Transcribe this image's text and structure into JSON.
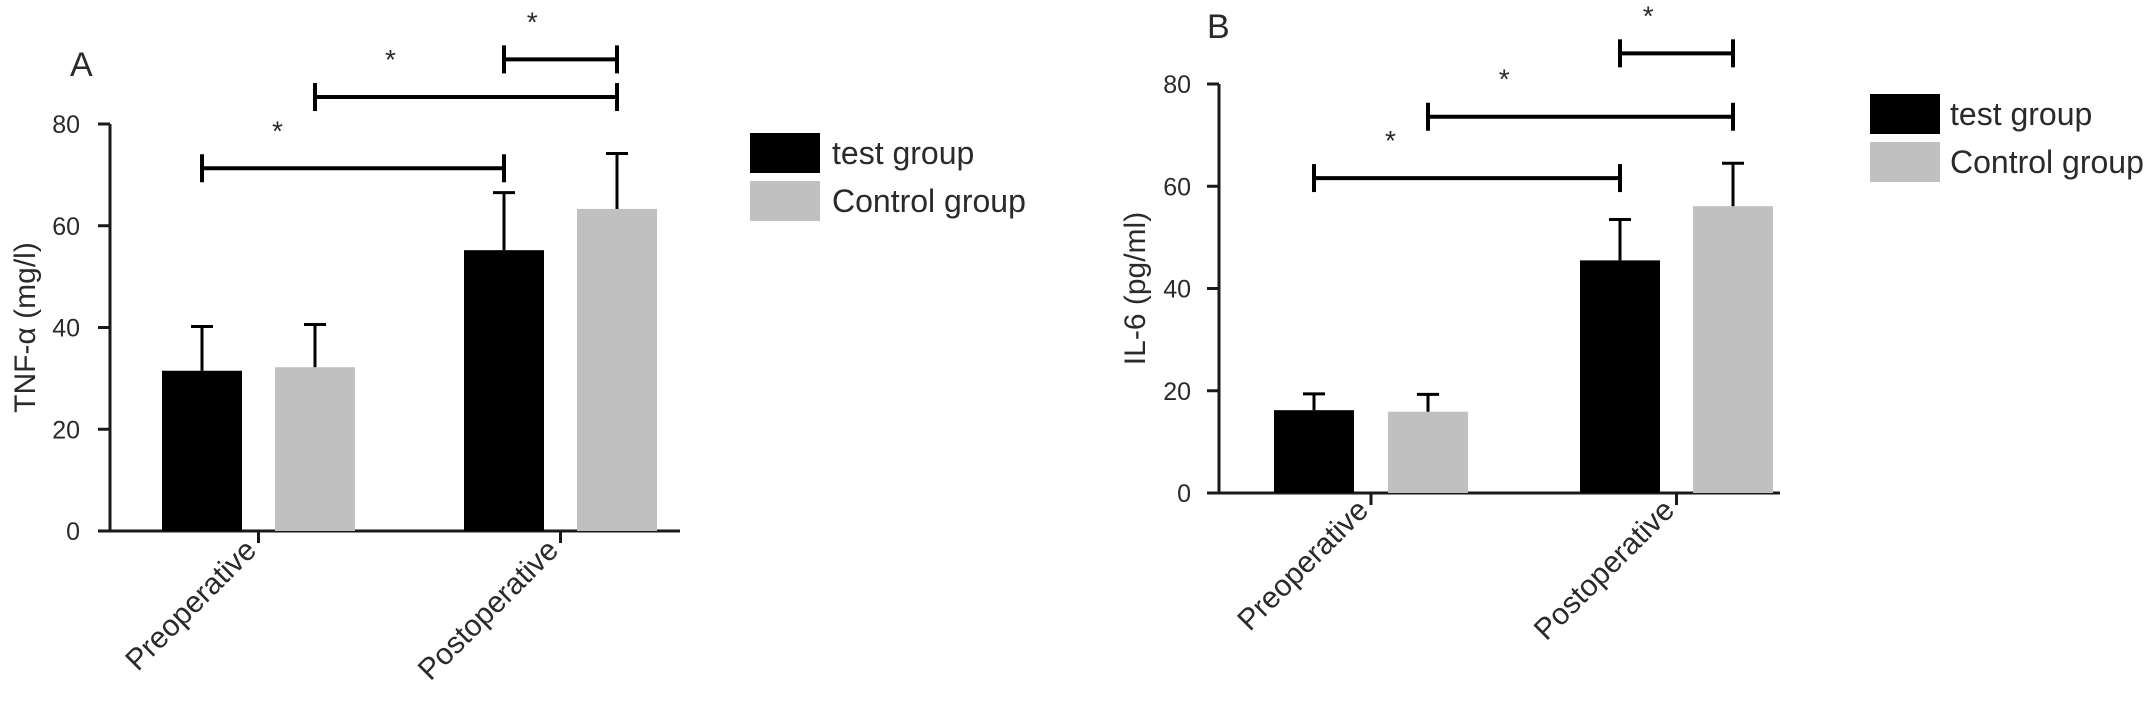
{
  "chart_data": [
    {
      "type": "bar",
      "panel_label": "A",
      "categories": [
        "Preoperative",
        "Postoperative"
      ],
      "series": [
        {
          "name": "test group",
          "color": "#000000",
          "values": [
            31.5,
            55.2
          ],
          "errors": [
            8.7,
            11.3
          ]
        },
        {
          "name": "Control group",
          "color": "#c0c0c0",
          "values": [
            32.2,
            63.3
          ],
          "errors": [
            8.4,
            10.9
          ]
        }
      ],
      "ylabel": "TNF-α (mg/l)",
      "ylim": [
        0,
        80
      ],
      "yticks": [
        "0",
        "20",
        "40",
        "60",
        "80"
      ],
      "legend_position": "right",
      "significance": [
        {
          "from": "test group | Preoperative",
          "to": "test group | Postoperative",
          "y": 71.3,
          "label": "*"
        },
        {
          "from": "control group | Preoperative",
          "to": "control group | Postoperative",
          "y": 85.3,
          "label": "*"
        },
        {
          "from": "test group | Postoperative",
          "to": "control group | Postoperative",
          "y": 92.7,
          "label": "*"
        }
      ]
    },
    {
      "type": "bar",
      "panel_label": "B",
      "categories": [
        "Preoperative",
        "Postoperative"
      ],
      "series": [
        {
          "name": "test group",
          "color": "#000000",
          "values": [
            16.2,
            45.5
          ],
          "errors": [
            3.2,
            8.0
          ]
        },
        {
          "name": "Control group",
          "color": "#c0c0c0",
          "values": [
            15.9,
            56.1
          ],
          "errors": [
            3.4,
            8.4
          ]
        }
      ],
      "ylabel": "IL-6 (pg/ml)",
      "ylim": [
        0,
        80
      ],
      "yticks": [
        "0",
        "20",
        "40",
        "60",
        "80"
      ],
      "legend_position": "right",
      "significance": [
        {
          "from": "test group | Preoperative",
          "to": "test group | Postoperative",
          "y": 61.6,
          "label": "*"
        },
        {
          "from": "control group | Preoperative",
          "to": "control group | Postoperative",
          "y": 73.6,
          "label": "*"
        },
        {
          "from": "test group | Postoperative",
          "to": "control group | Postoperative",
          "y": 86.0,
          "label": "*"
        }
      ]
    }
  ]
}
